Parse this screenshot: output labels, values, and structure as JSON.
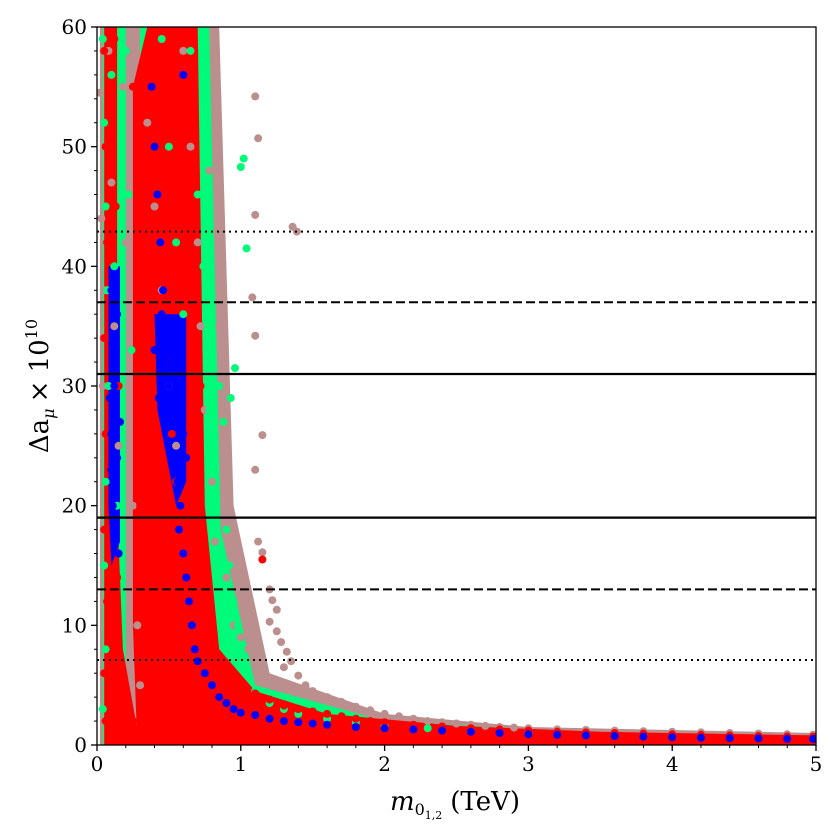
{
  "chart_data": {
    "type": "scatter",
    "title": "",
    "xlabel": {
      "main": "m",
      "sub": "0",
      "subsub": "1,2",
      "unit": "(TeV)"
    },
    "ylabel": {
      "main": "Δa",
      "sub": "μ",
      "times": "× 10",
      "exp": "10"
    },
    "xlim": [
      0,
      5
    ],
    "ylim": [
      0,
      60
    ],
    "xticks": [
      0,
      1,
      2,
      3,
      4,
      5
    ],
    "yticks": [
      0,
      10,
      20,
      30,
      40,
      50,
      60
    ],
    "grid": false,
    "legend": "none",
    "hlines": [
      {
        "y": 31.0,
        "style": "solid"
      },
      {
        "y": 19.0,
        "style": "solid"
      },
      {
        "y": 37.0,
        "style": "dashed"
      },
      {
        "y": 13.0,
        "style": "dashed"
      },
      {
        "y": 42.9,
        "style": "dotted"
      },
      {
        "y": 7.1,
        "style": "dotted"
      }
    ],
    "series_colors": {
      "light_brown": "#bc8f8f",
      "green": "#00fa7a",
      "red": "#ff0000",
      "blue": "#0000ff"
    },
    "series": [
      {
        "color_key": "light_brown",
        "points": [
          [
            0.02,
            54.5
          ],
          [
            0.03,
            44.0
          ],
          [
            0.05,
            38.0
          ],
          [
            0.04,
            30.0
          ],
          [
            0.08,
            58.0
          ],
          [
            0.1,
            47.0
          ],
          [
            0.12,
            35.0
          ],
          [
            0.15,
            25.0
          ],
          [
            0.18,
            55.0
          ],
          [
            0.2,
            42.0
          ],
          [
            0.22,
            30.0
          ],
          [
            0.25,
            20.0
          ],
          [
            0.28,
            10.0
          ],
          [
            0.3,
            5.0
          ],
          [
            0.35,
            52.0
          ],
          [
            0.4,
            45.0
          ],
          [
            0.45,
            38.0
          ],
          [
            0.5,
            30.0
          ],
          [
            0.55,
            25.0
          ],
          [
            0.6,
            58.0
          ],
          [
            0.65,
            50.0
          ],
          [
            0.7,
            42.0
          ],
          [
            0.72,
            35.0
          ],
          [
            0.75,
            28.0
          ],
          [
            0.78,
            48.0
          ],
          [
            0.8,
            22.0
          ],
          [
            0.82,
            17.0
          ],
          [
            0.85,
            35.0
          ],
          [
            0.9,
            14.0
          ],
          [
            0.95,
            10.0
          ],
          [
            1.1,
            54.2
          ],
          [
            1.12,
            50.7
          ],
          [
            1.1,
            44.3
          ],
          [
            1.1,
            34.2
          ],
          [
            1.08,
            37.4
          ],
          [
            1.15,
            25.9
          ],
          [
            1.1,
            23.0
          ],
          [
            1.12,
            17.0
          ],
          [
            1.15,
            16.1
          ],
          [
            1.2,
            13.0
          ],
          [
            1.22,
            12.1
          ],
          [
            1.25,
            11.3
          ],
          [
            1.2,
            10.3
          ],
          [
            1.25,
            9.5
          ],
          [
            1.28,
            8.6
          ],
          [
            1.32,
            7.8
          ],
          [
            1.35,
            7.0
          ],
          [
            1.3,
            6.5
          ],
          [
            1.36,
            43.3
          ],
          [
            1.39,
            42.9
          ],
          [
            1.4,
            5.8
          ],
          [
            1.45,
            5.0
          ],
          [
            1.5,
            4.5
          ],
          [
            1.6,
            4.0
          ],
          [
            1.7,
            3.6
          ],
          [
            1.8,
            3.2
          ],
          [
            1.9,
            2.9
          ],
          [
            2.0,
            2.6
          ],
          [
            2.1,
            2.4
          ],
          [
            2.2,
            2.2
          ],
          [
            2.3,
            2.0
          ],
          [
            2.4,
            1.9
          ],
          [
            2.5,
            1.8
          ],
          [
            2.6,
            1.7
          ],
          [
            2.7,
            1.6
          ],
          [
            2.8,
            1.5
          ],
          [
            2.9,
            1.45
          ],
          [
            3.0,
            1.4
          ],
          [
            3.2,
            1.3
          ],
          [
            3.4,
            1.25
          ],
          [
            3.6,
            1.2
          ],
          [
            3.8,
            1.15
          ],
          [
            4.0,
            1.1
          ],
          [
            4.2,
            1.05
          ],
          [
            4.4,
            1.0
          ],
          [
            4.6,
            0.95
          ],
          [
            4.8,
            0.9
          ],
          [
            4.98,
            0.85
          ],
          [
            1.0,
            9.0
          ],
          [
            1.05,
            8.0
          ]
        ]
      },
      {
        "color_key": "green",
        "points": [
          [
            0.04,
            59.0
          ],
          [
            0.05,
            52.0
          ],
          [
            0.06,
            45.0
          ],
          [
            0.07,
            38.0
          ],
          [
            0.08,
            30.0
          ],
          [
            0.06,
            22.0
          ],
          [
            0.05,
            15.0
          ],
          [
            0.06,
            8.0
          ],
          [
            0.04,
            3.0
          ],
          [
            0.1,
            56.0
          ],
          [
            0.12,
            40.0
          ],
          [
            0.14,
            20.0
          ],
          [
            0.2,
            58.0
          ],
          [
            0.22,
            46.0
          ],
          [
            0.24,
            33.0
          ],
          [
            0.45,
            59.0
          ],
          [
            0.5,
            50.0
          ],
          [
            0.55,
            42.0
          ],
          [
            0.6,
            36.0
          ],
          [
            0.65,
            58.0
          ],
          [
            0.7,
            46.0
          ],
          [
            0.74,
            40.0
          ],
          [
            0.76,
            33.0
          ],
          [
            0.78,
            28.0
          ],
          [
            0.8,
            24.0
          ],
          [
            0.82,
            20.0
          ],
          [
            0.85,
            30.0
          ],
          [
            0.88,
            27.0
          ],
          [
            0.9,
            18.0
          ],
          [
            0.92,
            15.0
          ],
          [
            0.95,
            12.0
          ],
          [
            0.98,
            10.0
          ],
          [
            1.0,
            48.3
          ],
          [
            1.02,
            49.0
          ],
          [
            1.04,
            41.5
          ],
          [
            0.96,
            31.5
          ],
          [
            0.93,
            29.0
          ],
          [
            1.0,
            8.0
          ],
          [
            1.05,
            6.0
          ],
          [
            1.1,
            4.5
          ],
          [
            1.2,
            3.5
          ],
          [
            1.3,
            3.0
          ],
          [
            1.4,
            2.6
          ],
          [
            1.6,
            2.2
          ],
          [
            1.8,
            1.9
          ],
          [
            2.0,
            1.6
          ],
          [
            2.3,
            1.4
          ],
          [
            2.6,
            1.2
          ],
          [
            3.0,
            1.0
          ],
          [
            3.4,
            0.9
          ],
          [
            3.8,
            0.8
          ],
          [
            4.2,
            0.75
          ],
          [
            4.6,
            0.7
          ],
          [
            4.98,
            0.65
          ]
        ]
      },
      {
        "color_key": "red",
        "points": [
          [
            0.05,
            58.0
          ],
          [
            0.06,
            50.0
          ],
          [
            0.07,
            42.0
          ],
          [
            0.05,
            34.0
          ],
          [
            0.06,
            26.0
          ],
          [
            0.05,
            18.0
          ],
          [
            0.07,
            12.0
          ],
          [
            0.05,
            6.0
          ],
          [
            0.06,
            2.0
          ],
          [
            0.12,
            59.0
          ],
          [
            0.13,
            45.0
          ],
          [
            0.15,
            30.0
          ],
          [
            0.14,
            14.0
          ],
          [
            0.25,
            55.0
          ],
          [
            0.28,
            45.0
          ],
          [
            0.3,
            35.0
          ],
          [
            0.32,
            28.0
          ],
          [
            0.3,
            20.0
          ],
          [
            0.32,
            14.0
          ],
          [
            0.35,
            10.0
          ],
          [
            0.4,
            58.0
          ],
          [
            0.42,
            50.0
          ],
          [
            0.45,
            44.0
          ],
          [
            0.48,
            38.0
          ],
          [
            0.5,
            32.0
          ],
          [
            0.52,
            26.0
          ],
          [
            0.55,
            22.0
          ],
          [
            0.58,
            18.0
          ],
          [
            0.6,
            15.0
          ],
          [
            0.62,
            12.0
          ],
          [
            0.6,
            59.5
          ],
          [
            0.62,
            54.0
          ],
          [
            0.65,
            47.0
          ],
          [
            0.68,
            41.0
          ],
          [
            0.7,
            36.0
          ],
          [
            0.72,
            30.0
          ],
          [
            0.68,
            24.0
          ],
          [
            0.7,
            19.0
          ],
          [
            0.72,
            16.0
          ],
          [
            0.75,
            13.0
          ],
          [
            0.8,
            10.0
          ],
          [
            0.82,
            8.0
          ],
          [
            0.85,
            7.0
          ],
          [
            0.9,
            6.0
          ],
          [
            1.0,
            5.0
          ],
          [
            1.1,
            4.3
          ],
          [
            1.2,
            3.8
          ],
          [
            1.15,
            15.5
          ],
          [
            1.3,
            3.3
          ],
          [
            1.4,
            3.0
          ],
          [
            1.5,
            2.8
          ],
          [
            1.6,
            2.6
          ],
          [
            1.7,
            2.4
          ],
          [
            1.8,
            2.2
          ],
          [
            1.9,
            2.0
          ],
          [
            2.0,
            1.9
          ],
          [
            2.2,
            1.7
          ],
          [
            2.4,
            1.55
          ],
          [
            2.6,
            1.4
          ],
          [
            2.8,
            1.3
          ],
          [
            3.0,
            1.2
          ],
          [
            3.2,
            1.1
          ],
          [
            3.4,
            1.05
          ],
          [
            3.6,
            1.0
          ],
          [
            3.8,
            0.95
          ],
          [
            4.0,
            0.9
          ],
          [
            4.2,
            0.85
          ],
          [
            4.4,
            0.8
          ],
          [
            4.6,
            0.75
          ],
          [
            4.8,
            0.72
          ],
          [
            4.98,
            0.7
          ],
          [
            0.25,
            2.0
          ],
          [
            0.35,
            4.0
          ],
          [
            0.45,
            6.0
          ],
          [
            0.55,
            8.0
          ],
          [
            0.65,
            9.0
          ],
          [
            0.3,
            1.0
          ],
          [
            0.5,
            3.0
          ],
          [
            0.7,
            5.0
          ],
          [
            0.9,
            3.5
          ]
        ]
      },
      {
        "color_key": "blue",
        "points": [
          [
            0.1,
            38.0
          ],
          [
            0.11,
            34.0
          ],
          [
            0.12,
            30.0
          ],
          [
            0.13,
            28.0
          ],
          [
            0.1,
            26.0
          ],
          [
            0.14,
            24.0
          ],
          [
            0.12,
            22.0
          ],
          [
            0.11,
            20.0
          ],
          [
            0.13,
            18.0
          ],
          [
            0.15,
            16.0
          ],
          [
            0.12,
            32.0
          ],
          [
            0.14,
            36.0
          ],
          [
            0.09,
            29.0
          ],
          [
            0.16,
            27.0
          ],
          [
            0.1,
            23.0
          ],
          [
            0.38,
            55.0
          ],
          [
            0.4,
            50.0
          ],
          [
            0.42,
            46.0
          ],
          [
            0.44,
            42.0
          ],
          [
            0.46,
            38.0
          ],
          [
            0.48,
            34.0
          ],
          [
            0.5,
            30.0
          ],
          [
            0.52,
            27.0
          ],
          [
            0.54,
            24.0
          ],
          [
            0.56,
            22.0
          ],
          [
            0.58,
            20.0
          ],
          [
            0.45,
            36.0
          ],
          [
            0.5,
            32.0
          ],
          [
            0.55,
            28.0
          ],
          [
            0.6,
            26.0
          ],
          [
            0.62,
            24.0
          ],
          [
            0.4,
            33.0
          ],
          [
            0.43,
            29.0
          ],
          [
            0.57,
            18.0
          ],
          [
            0.6,
            16.0
          ],
          [
            0.62,
            14.0
          ],
          [
            0.64,
            12.0
          ],
          [
            0.66,
            10.0
          ],
          [
            0.68,
            8.0
          ],
          [
            0.7,
            7.0
          ],
          [
            0.75,
            6.0
          ],
          [
            0.8,
            5.0
          ],
          [
            0.85,
            4.0
          ],
          [
            0.9,
            3.5
          ],
          [
            0.95,
            3.0
          ],
          [
            1.0,
            2.7
          ],
          [
            1.1,
            2.5
          ],
          [
            1.2,
            2.2
          ],
          [
            1.3,
            2.0
          ],
          [
            1.4,
            1.9
          ],
          [
            1.5,
            1.8
          ],
          [
            1.6,
            1.7
          ],
          [
            1.8,
            1.5
          ],
          [
            2.0,
            1.4
          ],
          [
            2.2,
            1.3
          ],
          [
            2.4,
            1.2
          ],
          [
            2.6,
            1.1
          ],
          [
            2.8,
            1.0
          ],
          [
            3.0,
            0.9
          ],
          [
            3.2,
            0.85
          ],
          [
            3.4,
            0.8
          ],
          [
            3.6,
            0.75
          ],
          [
            3.8,
            0.7
          ],
          [
            4.0,
            0.65
          ],
          [
            4.2,
            0.6
          ],
          [
            4.4,
            0.58
          ],
          [
            4.6,
            0.55
          ],
          [
            4.8,
            0.52
          ],
          [
            4.98,
            0.5
          ],
          [
            0.6,
            56.0
          ]
        ]
      }
    ]
  }
}
